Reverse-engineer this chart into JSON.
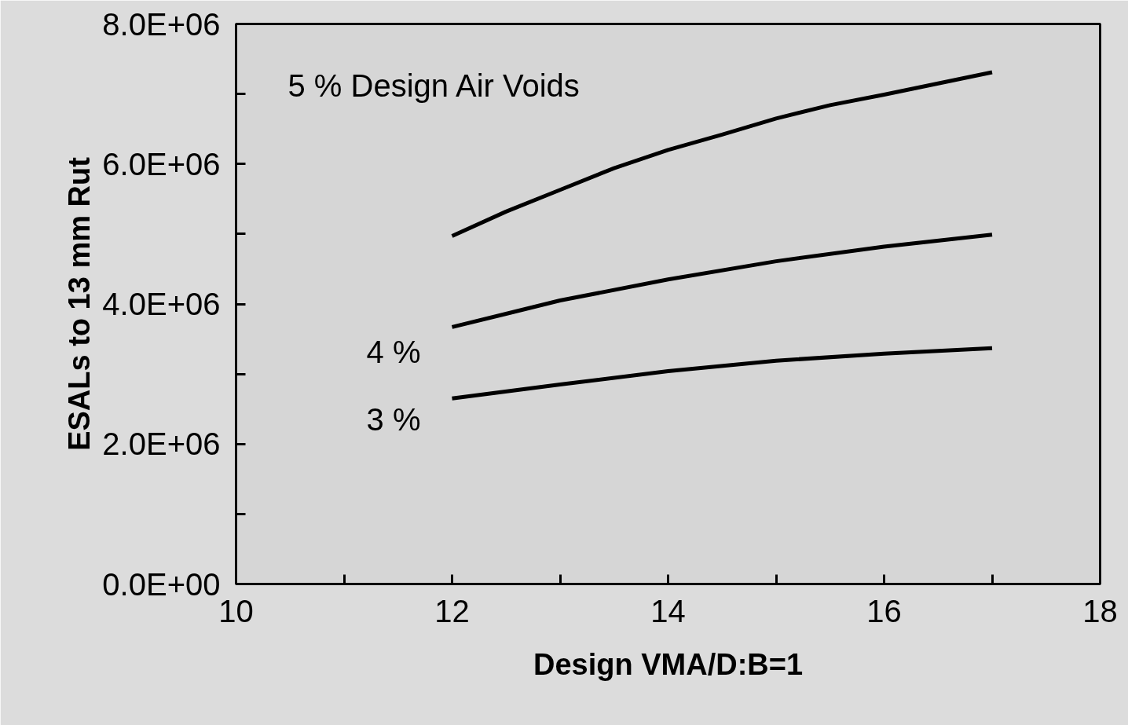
{
  "chart_data": {
    "type": "line",
    "xlabel": "Design VMA/D:B=1",
    "ylabel": "ESALs to 13 mm Rut",
    "series": [
      {
        "color": "#000000",
        "x": [
          12,
          12.5,
          13,
          13.5,
          14,
          14.5,
          15,
          15.5,
          16,
          16.5,
          17
        ],
        "values": [
          4970000,
          5320000,
          5630000,
          5940000,
          6200000,
          6420000,
          6650000,
          6840000,
          6990000,
          7150000,
          7310000
        ]
      },
      {
        "color": "#000000",
        "x": [
          12,
          12.5,
          13,
          14,
          15,
          16,
          17
        ],
        "values": [
          3670000,
          3860000,
          4050000,
          4350000,
          4610000,
          4820000,
          4990000
        ]
      },
      {
        "color": "#000000",
        "x": [
          12,
          13,
          14,
          15,
          16,
          17
        ],
        "values": [
          2650000,
          2850000,
          3040000,
          3190000,
          3290000,
          3370000
        ]
      }
    ],
    "xlim": [
      10,
      18
    ],
    "xticks": [
      10,
      {
        "value": 11,
        "label": null
      },
      12,
      {
        "value": 13,
        "label": null
      },
      14,
      {
        "value": 15,
        "label": null
      },
      16,
      {
        "value": 17,
        "label": null
      },
      18
    ],
    "ylim": [
      0,
      8000000
    ],
    "yticks": [
      {
        "value": 0,
        "label": "0.0E+00"
      },
      {
        "value": 1000000,
        "label": null
      },
      {
        "value": 2000000,
        "label": "2.0E+06"
      },
      {
        "value": 3000000,
        "label": null
      },
      {
        "value": 4000000,
        "label": "4.0E+06"
      },
      {
        "value": 5000000,
        "label": null
      },
      {
        "value": 6000000,
        "label": "6.0E+06"
      },
      {
        "value": 7000000,
        "label": null
      },
      {
        "value": 8000000,
        "label": "8.0E+06"
      }
    ],
    "annotations": [
      "5 % Design Air Voids",
      "4 %",
      "3 %"
    ],
    "grid": false,
    "marker": "none",
    "line_style": "solid"
  }
}
